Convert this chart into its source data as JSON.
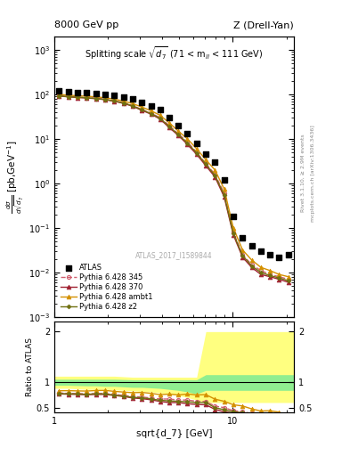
{
  "title_left": "8000 GeV pp",
  "title_right": "Z (Drell-Yan)",
  "inner_title": "Splitting scale $\\sqrt{d_7}$ (71 < m$_{ll}$ < 111 GeV)",
  "xlabel": "sqrt{d_7} [GeV]",
  "ylabel_main": "d$\\sigma$/dsqrt($\\overline{d_7}$) [pb,GeV$^{-1}$]",
  "ylabel_ratio": "Ratio to ATLAS",
  "watermark": "ATLAS_2017_I1589844",
  "right_label1": "Rivet 3.1.10, ≥ 2.9M events",
  "right_label2": "mcplots.cern.ch [arXiv:1306.3436]",
  "atlas_x": [
    1.06,
    1.2,
    1.35,
    1.52,
    1.71,
    1.92,
    2.17,
    2.44,
    2.75,
    3.09,
    3.48,
    3.91,
    4.4,
    4.95,
    5.57,
    6.27,
    7.06,
    7.94,
    8.94,
    10.06,
    11.33,
    12.75,
    14.35,
    16.15,
    18.17,
    20.45
  ],
  "atlas_y": [
    120,
    115,
    112,
    110,
    105,
    100,
    95,
    88,
    78,
    65,
    55,
    45,
    30,
    20,
    13,
    8,
    4.5,
    3.0,
    1.2,
    0.18,
    0.06,
    0.04,
    0.03,
    0.025,
    0.022,
    0.025
  ],
  "py345_x": [
    1.06,
    1.2,
    1.35,
    1.52,
    1.71,
    1.92,
    2.17,
    2.44,
    2.75,
    3.09,
    3.48,
    3.91,
    4.4,
    4.95,
    5.57,
    6.27,
    7.06,
    7.94,
    8.94,
    10.06,
    11.33,
    12.75,
    14.35,
    16.15,
    18.17,
    20.45
  ],
  "py345_y": [
    95,
    90,
    87,
    85,
    82,
    78,
    72,
    65,
    56,
    46,
    38,
    30,
    20,
    13,
    8.5,
    5.0,
    2.8,
    1.6,
    0.6,
    0.08,
    0.025,
    0.015,
    0.011,
    0.009,
    0.008,
    0.007
  ],
  "py370_x": [
    1.06,
    1.2,
    1.35,
    1.52,
    1.71,
    1.92,
    2.17,
    2.44,
    2.75,
    3.09,
    3.48,
    3.91,
    4.4,
    4.95,
    5.57,
    6.27,
    7.06,
    7.94,
    8.94,
    10.06,
    11.33,
    12.75,
    14.35,
    16.15,
    18.17,
    20.45
  ],
  "py370_y": [
    92,
    88,
    85,
    83,
    80,
    76,
    70,
    63,
    54,
    44,
    36,
    28,
    18,
    12,
    7.5,
    4.5,
    2.5,
    1.4,
    0.5,
    0.07,
    0.022,
    0.013,
    0.009,
    0.008,
    0.007,
    0.006
  ],
  "pyambt1_x": [
    1.06,
    1.2,
    1.35,
    1.52,
    1.71,
    1.92,
    2.17,
    2.44,
    2.75,
    3.09,
    3.48,
    3.91,
    4.4,
    4.95,
    5.57,
    6.27,
    7.06,
    7.94,
    8.94,
    10.06,
    11.33,
    12.75,
    14.35,
    16.15,
    18.17,
    20.45
  ],
  "pyambt1_y": [
    100,
    96,
    93,
    91,
    88,
    84,
    78,
    71,
    62,
    52,
    43,
    34,
    23,
    15,
    10,
    6.0,
    3.4,
    2.0,
    0.75,
    0.1,
    0.032,
    0.019,
    0.013,
    0.011,
    0.009,
    0.008
  ],
  "pyz2_x": [
    1.06,
    1.2,
    1.35,
    1.52,
    1.71,
    1.92,
    2.17,
    2.44,
    2.75,
    3.09,
    3.48,
    3.91,
    4.4,
    4.95,
    5.57,
    6.27,
    7.06,
    7.94,
    8.94,
    10.06,
    11.33,
    12.75,
    14.35,
    16.15,
    18.17,
    20.45
  ],
  "pyz2_y": [
    93,
    89,
    86,
    84,
    81,
    77,
    71,
    64,
    55,
    45,
    37,
    29,
    19,
    12.5,
    8.0,
    4.8,
    2.7,
    1.5,
    0.55,
    0.075,
    0.024,
    0.014,
    0.01,
    0.0085,
    0.0075,
    0.0065
  ],
  "ratio_py345_y": [
    0.79,
    0.78,
    0.78,
    0.77,
    0.78,
    0.78,
    0.76,
    0.74,
    0.72,
    0.71,
    0.69,
    0.67,
    0.67,
    0.65,
    0.65,
    0.625,
    0.62,
    0.53,
    0.5,
    0.44,
    0.42,
    0.38,
    0.37,
    0.36,
    0.36,
    0.28
  ],
  "ratio_py370_y": [
    0.77,
    0.765,
    0.76,
    0.755,
    0.76,
    0.76,
    0.74,
    0.72,
    0.69,
    0.677,
    0.655,
    0.622,
    0.6,
    0.6,
    0.577,
    0.5625,
    0.556,
    0.467,
    0.417,
    0.389,
    0.367,
    0.325,
    0.3,
    0.32,
    0.318,
    0.24
  ],
  "ratio_pyambt1_y": [
    0.833,
    0.835,
    0.83,
    0.827,
    0.838,
    0.84,
    0.821,
    0.807,
    0.795,
    0.8,
    0.782,
    0.756,
    0.767,
    0.75,
    0.769,
    0.75,
    0.756,
    0.667,
    0.625,
    0.556,
    0.533,
    0.475,
    0.433,
    0.44,
    0.41,
    0.32
  ],
  "ratio_pyz2_y": [
    0.775,
    0.774,
    0.768,
    0.764,
    0.771,
    0.77,
    0.747,
    0.727,
    0.705,
    0.692,
    0.673,
    0.644,
    0.633,
    0.625,
    0.615,
    0.6,
    0.6,
    0.5,
    0.458,
    0.417,
    0.4,
    0.35,
    0.333,
    0.34,
    0.341,
    0.26
  ],
  "band_yellow_x": [
    1.0,
    1.06,
    1.2,
    1.35,
    1.52,
    1.71,
    1.92,
    2.17,
    2.44,
    2.75,
    3.09,
    3.48,
    3.91,
    4.4,
    4.95,
    5.57,
    6.27,
    7.06,
    7.94,
    25.0
  ],
  "band_yellow_ylow": [
    0.88,
    0.88,
    0.88,
    0.87,
    0.86,
    0.86,
    0.86,
    0.85,
    0.84,
    0.83,
    0.82,
    0.81,
    0.79,
    0.77,
    0.74,
    0.7,
    0.65,
    0.6,
    0.6,
    0.6
  ],
  "band_yellow_yhigh": [
    1.12,
    1.12,
    1.12,
    1.12,
    1.12,
    1.12,
    1.12,
    1.12,
    1.11,
    1.1,
    1.1,
    1.1,
    1.1,
    1.1,
    1.1,
    1.1,
    1.1,
    2.0,
    2.0,
    2.0
  ],
  "band_green_x": [
    1.0,
    1.06,
    1.2,
    1.35,
    1.52,
    1.71,
    1.92,
    2.17,
    2.44,
    2.75,
    3.09,
    3.48,
    3.91,
    4.4,
    4.95,
    5.57,
    6.27,
    7.06,
    25.0
  ],
  "band_green_ylow": [
    0.94,
    0.94,
    0.94,
    0.935,
    0.93,
    0.93,
    0.92,
    0.92,
    0.91,
    0.9,
    0.9,
    0.89,
    0.88,
    0.86,
    0.84,
    0.81,
    0.77,
    0.84,
    0.84
  ],
  "band_green_yhigh": [
    1.06,
    1.06,
    1.06,
    1.06,
    1.06,
    1.06,
    1.06,
    1.06,
    1.055,
    1.05,
    1.05,
    1.05,
    1.05,
    1.05,
    1.05,
    1.05,
    1.05,
    1.15,
    1.15
  ],
  "color_atlas": "#000000",
  "color_py345": "#d06070",
  "color_py370": "#a02030",
  "color_pyambt1": "#d49000",
  "color_pyz2": "#707010",
  "color_band_green": "#90ee90",
  "color_band_yellow": "#ffff80",
  "xlim": [
    1.0,
    22.0
  ],
  "ylim_main": [
    0.001,
    2000
  ],
  "ylim_ratio": [
    0.4,
    2.2
  ],
  "ratio_yticks": [
    0.5,
    1.0,
    2.0
  ]
}
